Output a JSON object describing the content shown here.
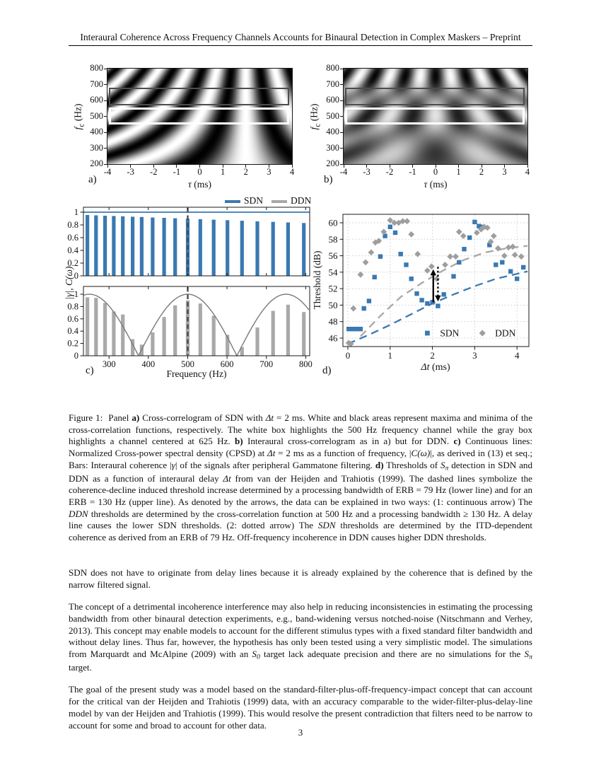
{
  "header": {
    "title": "Interaural Coherence Across Frequency Channels Accounts for Binaural Detection in Complex Maskers – Preprint"
  },
  "figure": {
    "panel_letters": {
      "a": "a)",
      "b": "b)",
      "c": "c)",
      "d": "d)"
    },
    "legend_top": {
      "items": [
        {
          "label": "SDN",
          "color": "#3a79b1"
        },
        {
          "label": "DDN",
          "color": "#a8a8a8"
        }
      ]
    },
    "correlogram": {
      "ylabel": {
        "math": "f",
        "sub": "c",
        "unit": " (Hz)"
      },
      "xlabel": {
        "math": "τ",
        "unit": " (ms)"
      },
      "y_ticks": [
        800,
        700,
        600,
        500,
        400,
        300,
        200
      ],
      "x_ticks": [
        -4,
        -3,
        -2,
        -1,
        0,
        1,
        2,
        3,
        4
      ],
      "f_range_hz": [
        200,
        800
      ],
      "tau_range_ms": [
        -4,
        4
      ],
      "delta_t_ms": 2,
      "highlight_boxes": [
        {
          "name": "gray-highlight-box",
          "f_low": 570,
          "f_high": 680,
          "color": "#4d4d4d"
        },
        {
          "name": "white-highlight-box",
          "f_low": 450,
          "f_high": 555,
          "color": "#ffffff"
        }
      ]
    }
  },
  "chart_data": [
    {
      "panel": "a",
      "type": "heatmap",
      "signal": "SDN",
      "xlabel": "τ (ms)",
      "ylabel": "fc (Hz)",
      "x_range": [
        -4,
        4
      ],
      "y_range_hz": [
        200,
        800
      ],
      "pattern": "brightness ~ cos(2*pi*f*(tau - delta_t)), delta_t = 2 ms",
      "highlights": [
        "white box at 500 Hz channel",
        "gray box at 625 Hz channel"
      ]
    },
    {
      "panel": "b",
      "type": "heatmap",
      "signal": "DDN",
      "xlabel": "τ (ms)",
      "ylabel": "fc (Hz)",
      "x_range": [
        -4,
        4
      ],
      "y_range_hz": [
        200,
        800
      ],
      "pattern": "brightness ~ cos(2*pi*f*tau)*cos(2*pi*f*delta_t), delta_t = 2 ms",
      "highlights": [
        "white box at 500 Hz channel",
        "gray box at 625 Hz channel"
      ]
    },
    {
      "panel": "c",
      "type": "bar",
      "xlabel": "Frequency (Hz)",
      "ylabel": "|γ|, C(ω)",
      "x_ticks": [
        300,
        400,
        500,
        600,
        700,
        800
      ],
      "y_ticks": [
        0,
        0.2,
        0.4,
        0.6,
        0.8,
        1
      ],
      "xlim": [
        235,
        810
      ],
      "ylim": [
        0,
        1.08
      ],
      "dashed_marker_hz": 500,
      "channels_hz": [
        245,
        267,
        290,
        312,
        335,
        360,
        383,
        411,
        440,
        468,
        500,
        532,
        566,
        601,
        638,
        677,
        717,
        755,
        795
      ],
      "subplots": [
        {
          "series": "SDN",
          "line": "constant 1.0 (CPSD)",
          "bar_values": [
            0.955,
            0.95,
            0.945,
            0.94,
            0.935,
            0.929,
            0.924,
            0.917,
            0.911,
            0.904,
            0.897,
            0.89,
            0.882,
            0.874,
            0.866,
            0.857,
            0.848,
            0.839,
            0.83
          ]
        },
        {
          "series": "DDN",
          "line": "|cos(pi*(f-500)/250)| (CPSD)",
          "bar_values": [
            0.95,
            0.94,
            0.86,
            0.72,
            0.67,
            0.27,
            0.18,
            0.38,
            0.63,
            0.82,
            0.9,
            0.85,
            0.65,
            0.34,
            0.14,
            0.46,
            0.73,
            0.83,
            0.71
          ]
        }
      ]
    },
    {
      "panel": "d",
      "type": "scatter",
      "xlabel": "Δt (ms)",
      "xlabel_math": "Δt",
      "xlabel_unit": " (ms)",
      "ylabel": "Threshold (dB)",
      "xlim": [
        -0.12,
        4.28
      ],
      "ylim": [
        45,
        61
      ],
      "x_ticks": [
        0,
        1,
        2,
        3,
        4
      ],
      "y_ticks": [
        46,
        48,
        50,
        52,
        54,
        56,
        58,
        60
      ],
      "grid": "dotted",
      "series": [
        {
          "name": "SDN",
          "marker": "square",
          "color": "#3a79b1",
          "points": [
            [
              0.02,
              47.1
            ],
            [
              0.12,
              47.1
            ],
            [
              0.22,
              47.1
            ],
            [
              0.3,
              47.1
            ],
            [
              0.38,
              49.6
            ],
            [
              0.5,
              50.5
            ],
            [
              0.63,
              53.4
            ],
            [
              0.77,
              55.9
            ],
            [
              0.88,
              58.4
            ],
            [
              1.0,
              59.5
            ],
            [
              1.12,
              58.8
            ],
            [
              1.25,
              56.2
            ],
            [
              1.38,
              54.9
            ],
            [
              1.5,
              53.2
            ],
            [
              1.63,
              51.4
            ],
            [
              1.75,
              50.6
            ],
            [
              1.88,
              50.2
            ],
            [
              2.0,
              50.35
            ],
            [
              2.13,
              49.9
            ],
            [
              2.27,
              51.3
            ],
            [
              2.5,
              53.5
            ],
            [
              2.63,
              55.2
            ],
            [
              2.75,
              56.8
            ],
            [
              2.88,
              58.2
            ],
            [
              3.0,
              60.1
            ],
            [
              3.1,
              59.6
            ],
            [
              3.2,
              59.5
            ],
            [
              3.35,
              57.3
            ],
            [
              3.5,
              54.9
            ],
            [
              3.65,
              55.2
            ],
            [
              3.85,
              54.1
            ],
            [
              4.0,
              53.2
            ],
            [
              4.15,
              54.6
            ]
          ]
        },
        {
          "name": "DDN",
          "marker": "diamond",
          "color": "#9e9e9e",
          "points": [
            [
              0.02,
              45.4
            ],
            [
              0.07,
              45.3
            ],
            [
              0.13,
              49.6
            ],
            [
              0.3,
              53.7
            ],
            [
              0.42,
              55.2
            ],
            [
              0.55,
              56.4
            ],
            [
              0.65,
              57.6
            ],
            [
              0.73,
              57.8
            ],
            [
              0.85,
              58.9
            ],
            [
              1.0,
              60.3
            ],
            [
              1.1,
              60.0
            ],
            [
              1.2,
              60.0
            ],
            [
              1.3,
              60.2
            ],
            [
              1.4,
              60.2
            ],
            [
              1.5,
              58.6
            ],
            [
              1.65,
              56.2
            ],
            [
              1.88,
              54.2
            ],
            [
              1.98,
              54.7
            ],
            [
              2.1,
              53.2
            ],
            [
              2.3,
              54.9
            ],
            [
              2.42,
              55.9
            ],
            [
              2.55,
              55.9
            ],
            [
              2.63,
              58.9
            ],
            [
              2.73,
              58.4
            ],
            [
              3.05,
              58.8
            ],
            [
              3.15,
              59.2
            ],
            [
              3.22,
              59.5
            ],
            [
              3.3,
              59.4
            ],
            [
              3.38,
              57.7
            ],
            [
              3.45,
              58.4
            ],
            [
              3.55,
              56.9
            ],
            [
              3.7,
              56.0
            ],
            [
              3.8,
              57.0
            ],
            [
              3.9,
              57.1
            ],
            [
              3.95,
              56.1
            ],
            [
              4.1,
              55.9
            ]
          ]
        }
      ],
      "dashed_lines": [
        {
          "name": "ERB = 79 Hz (lower line)",
          "color": "#3a79b1",
          "points": [
            [
              0.0,
              45.3
            ],
            [
              0.5,
              46.4
            ],
            [
              1.0,
              47.6
            ],
            [
              1.5,
              48.9
            ],
            [
              2.0,
              50.2
            ],
            [
              2.5,
              51.3
            ],
            [
              3.0,
              52.3
            ],
            [
              3.5,
              53.2
            ],
            [
              4.25,
              54.1
            ]
          ]
        },
        {
          "name": "ERB = 130 Hz (upper line)",
          "color": "#a8a8a8",
          "points": [
            [
              0.3,
              46.2
            ],
            [
              0.75,
              48.6
            ],
            [
              1.25,
              51.0
            ],
            [
              1.75,
              52.7
            ],
            [
              2.25,
              54.2
            ],
            [
              2.75,
              55.5
            ],
            [
              3.25,
              56.4
            ],
            [
              3.75,
              56.9
            ],
            [
              4.25,
              57.2
            ]
          ]
        }
      ],
      "arrows": [
        {
          "style": "solid",
          "x": 2.02,
          "y_from": 50.35,
          "y_to": 54.35,
          "head": "up"
        },
        {
          "style": "dotted",
          "x": 2.13,
          "y_from": 54.65,
          "y_to": 50.45,
          "head": "down"
        }
      ],
      "legend": {
        "items": [
          "SDN",
          "DDN"
        ],
        "position": "inside bottom right"
      }
    }
  ],
  "caption": {
    "segments": [
      {
        "t": "Figure 1:  Panel ",
        "s": "n"
      },
      {
        "t": "a)",
        "s": "b"
      },
      {
        "t": " Cross-correlogram of SDN with ",
        "s": "n"
      },
      {
        "t": "Δt",
        "s": "i"
      },
      {
        "t": " = 2 ms. White and black areas represent maxima and minima of the cross-correlation functions, respectively. The white box highlights the 500 Hz frequency channel while the gray box highlights a channel centered at 625 Hz. ",
        "s": "n"
      },
      {
        "t": "b)",
        "s": "b"
      },
      {
        "t": " Interaural cross-correlogram as in a) but for DDN. ",
        "s": "n"
      },
      {
        "t": "c)",
        "s": "b"
      },
      {
        "t": " Continuous lines: Normalized Cross-power spectral density (CPSD) at ",
        "s": "n"
      },
      {
        "t": "Δt",
        "s": "i"
      },
      {
        "t": " = 2 ms as a function of frequency, |",
        "s": "n"
      },
      {
        "t": "C(ω)",
        "s": "i"
      },
      {
        "t": "|, as derived in (13) et seq.; Bars: Interaural coherence |",
        "s": "n"
      },
      {
        "t": "γ",
        "s": "i"
      },
      {
        "t": "| of the signals after peripheral Gammatone filtering. ",
        "s": "n"
      },
      {
        "t": "d)",
        "s": "b"
      },
      {
        "t": " Thresholds of ",
        "s": "n"
      },
      {
        "t": "S",
        "s": "i"
      },
      {
        "t": "π",
        "s": "sub"
      },
      {
        "t": " detection in SDN and DDN as a function of interaural delay ",
        "s": "n"
      },
      {
        "t": "Δt",
        "s": "i"
      },
      {
        "t": " from van der Heijden and Trahiotis (1999). The dashed lines symbolize the coherence-decline induced threshold increase determined by a processing bandwidth of ERB = 79 Hz (lower line) and for an ERB = 130 Hz (upper line). As denoted by the arrows, the data can be explained in two ways: (1: continuous arrow) The ",
        "s": "n"
      },
      {
        "t": "DDN",
        "s": "i"
      },
      {
        "t": " thresholds are determined by the cross-correlation function at 500 Hz and a processing bandwidth ≥ 130 Hz. A delay line causes the lower SDN thresholds. (2: dotted arrow) The ",
        "s": "n"
      },
      {
        "t": "SDN",
        "s": "i"
      },
      {
        "t": " thresholds are determined by the ITD-dependent coherence as derived from an ERB of 79 Hz. Off-frequency incoherence in DDN causes higher DDN thresholds.",
        "s": "n"
      }
    ]
  },
  "paragraphs": [
    [
      {
        "t": "SDN does not have to originate from delay lines because it is already explained by the coherence that is defined by the narrow filtered signal.",
        "s": "n"
      }
    ],
    [
      {
        "t": "The concept of a detrimental incoherence interference may also help in reducing inconsistencies in estimating the processing bandwidth from other binaural detection experiments, e.g., band-widening versus notched-noise (Nitschmann and Verhey, 2013). This concept may enable models to account for the different stimulus types with a fixed standard filter bandwidth and without delay lines. Thus far, however, the hypothesis has only been tested using a very simplistic model. The simulations from Marquardt and McAlpine (2009) with an ",
        "s": "n"
      },
      {
        "t": "S",
        "s": "i"
      },
      {
        "t": "0",
        "s": "sub"
      },
      {
        "t": " target lack adequate precision and there are no simulations for the ",
        "s": "n"
      },
      {
        "t": "S",
        "s": "i"
      },
      {
        "t": "π",
        "s": "sub"
      },
      {
        "t": " target.",
        "s": "n"
      }
    ],
    [
      {
        "t": "The goal of the present study was a model based on the standard-filter-plus-off-frequency-impact concept that can account for the critical van der Heijden and Trahiotis (1999) data, with an accuracy comparable to the wider-filter-plus-delay-line model by van der Heijden and Trahiotis (1999). This would resolve the present contradiction that filters need to be narrow to account for some and broad to account for other data.",
        "s": "n"
      }
    ]
  ],
  "footer": {
    "page_number": "3"
  }
}
